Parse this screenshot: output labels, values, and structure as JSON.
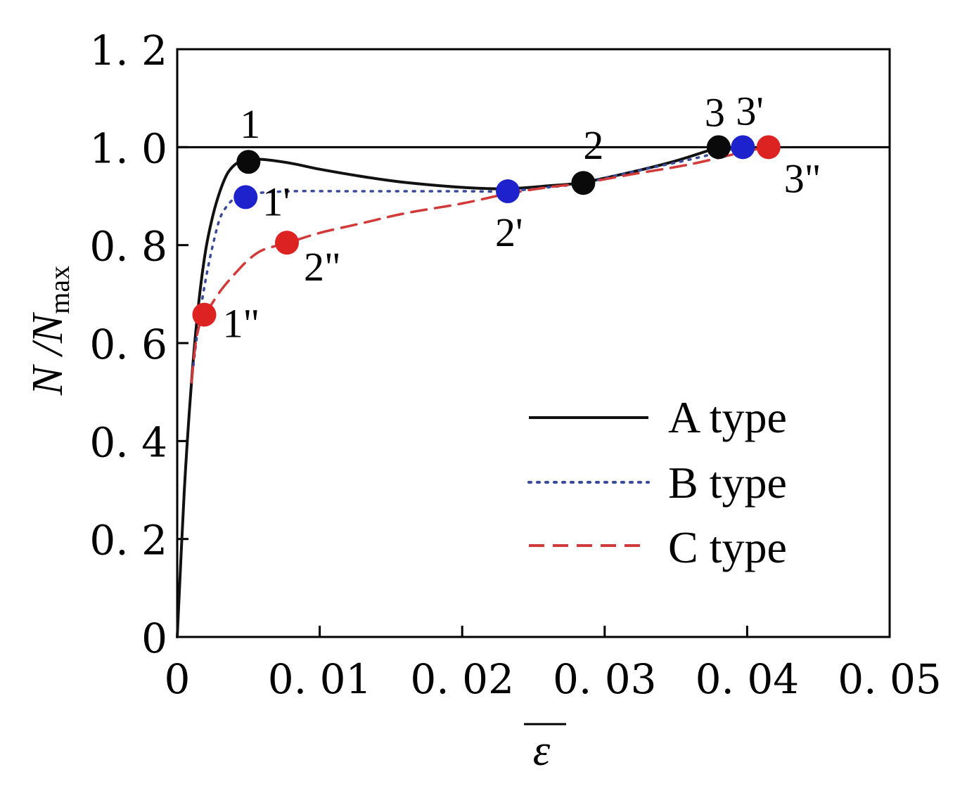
{
  "chart_data": {
    "type": "line",
    "xlabel": "ε",
    "ylabel": {
      "main": "N /N",
      "sub": "max"
    },
    "xlim": [
      0,
      0.05
    ],
    "ylim": [
      0,
      1.2
    ],
    "x_ticks": [
      {
        "value": 0,
        "label": "0"
      },
      {
        "value": 0.01,
        "label": "0. 01"
      },
      {
        "value": 0.02,
        "label": "0. 02"
      },
      {
        "value": 0.03,
        "label": "0. 03"
      },
      {
        "value": 0.04,
        "label": "0. 04"
      },
      {
        "value": 0.05,
        "label": "0. 05"
      }
    ],
    "y_ticks": [
      {
        "value": 0,
        "label": "0"
      },
      {
        "value": 0.2,
        "label": "0. 2"
      },
      {
        "value": 0.4,
        "label": "0. 4"
      },
      {
        "value": 0.6,
        "label": "0. 6"
      },
      {
        "value": 0.8,
        "label": "0. 8"
      },
      {
        "value": 1.0,
        "label": "1. 0"
      },
      {
        "value": 1.2,
        "label": "1. 2"
      }
    ],
    "reference_line": {
      "y": 1.0
    },
    "grid": false,
    "legend_position": "bottom-right",
    "series": [
      {
        "name": "A type",
        "color": "#111111",
        "style": "solid",
        "x": [
          0,
          0.0005,
          0.001,
          0.0015,
          0.002,
          0.0025,
          0.003,
          0.0035,
          0.004,
          0.0045,
          0.005,
          0.006,
          0.008,
          0.01,
          0.013,
          0.016,
          0.02,
          0.023,
          0.026,
          0.0285,
          0.032,
          0.035,
          0.038
        ],
        "y": [
          0,
          0.3,
          0.52,
          0.68,
          0.79,
          0.86,
          0.91,
          0.945,
          0.963,
          0.972,
          0.975,
          0.975,
          0.967,
          0.955,
          0.94,
          0.928,
          0.918,
          0.915,
          0.921,
          0.928,
          0.95,
          0.972,
          1.0
        ],
        "markers": [
          {
            "x": 0.005,
            "y": 0.97,
            "label": "1"
          },
          {
            "x": 0.0285,
            "y": 0.927,
            "label": "2"
          },
          {
            "x": 0.038,
            "y": 1.0,
            "label": "3"
          }
        ]
      },
      {
        "name": "B type",
        "color": "#3a4a9a",
        "style": "dotted",
        "x": [
          0.001,
          0.0015,
          0.002,
          0.0025,
          0.003,
          0.0035,
          0.004,
          0.0045,
          0.005,
          0.008,
          0.012,
          0.016,
          0.02,
          0.023,
          0.026,
          0.0285,
          0.032,
          0.036,
          0.0395
        ],
        "y": [
          0.52,
          0.64,
          0.73,
          0.8,
          0.855,
          0.88,
          0.895,
          0.9,
          0.905,
          0.91,
          0.91,
          0.91,
          0.91,
          0.91,
          0.918,
          0.927,
          0.95,
          0.975,
          1.0
        ],
        "markers": [
          {
            "x": 0.0048,
            "y": 0.898,
            "label": "1'"
          },
          {
            "x": 0.0232,
            "y": 0.91,
            "label": "2'"
          },
          {
            "x": 0.0397,
            "y": 1.0,
            "label": "3'"
          }
        ]
      },
      {
        "name": "C type",
        "color": "#d23a3a",
        "style": "dashed",
        "x": [
          0.001,
          0.0013,
          0.0016,
          0.002,
          0.003,
          0.004,
          0.005,
          0.006,
          0.0078,
          0.01,
          0.013,
          0.016,
          0.02,
          0.0232,
          0.026,
          0.0285,
          0.032,
          0.036,
          0.0397,
          0.0415
        ],
        "y": [
          0.52,
          0.6,
          0.64,
          0.66,
          0.705,
          0.74,
          0.77,
          0.79,
          0.805,
          0.825,
          0.845,
          0.865,
          0.885,
          0.905,
          0.918,
          0.927,
          0.945,
          0.965,
          0.99,
          1.0
        ],
        "markers": [
          {
            "x": 0.0019,
            "y": 0.658,
            "label": "1\""
          },
          {
            "x": 0.0077,
            "y": 0.805,
            "label": "2\""
          },
          {
            "x": 0.0415,
            "y": 1.0,
            "label": "3\""
          }
        ]
      }
    ]
  }
}
